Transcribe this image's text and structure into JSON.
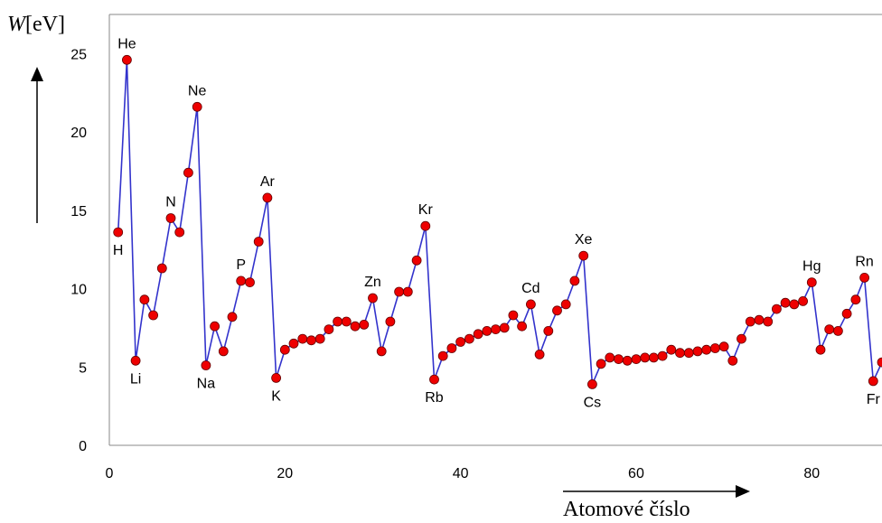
{
  "chart_data": {
    "type": "line",
    "ylabel_var": "W",
    "ylabel_unit": "[eV]",
    "xlabel": "Atomové číslo",
    "xlim": [
      0,
      88
    ],
    "ylim": [
      0,
      27.5
    ],
    "x_ticks": [
      0,
      20,
      40,
      60,
      80
    ],
    "y_ticks": [
      0,
      5,
      10,
      15,
      20,
      25
    ],
    "grid": false,
    "line_color": "#3333cc",
    "marker_color": "#ee0000",
    "series": [
      {
        "x": [
          1,
          2,
          3,
          4,
          5,
          6,
          7,
          8,
          9,
          10,
          11,
          12,
          13,
          14,
          15,
          16,
          17,
          18,
          19,
          20,
          21,
          22,
          23,
          24,
          25,
          26,
          27,
          28,
          29,
          30,
          31,
          32,
          33,
          34,
          35,
          36,
          37,
          38,
          39,
          40,
          41,
          42,
          43,
          44,
          45,
          46,
          47,
          48,
          49,
          50,
          51,
          52,
          53,
          54,
          55,
          56,
          57,
          58,
          59,
          60,
          61,
          62,
          63,
          64,
          65,
          66,
          67,
          68,
          69,
          70,
          71,
          72,
          73,
          74,
          75,
          76,
          77,
          78,
          79,
          80,
          81,
          82,
          83,
          84,
          85,
          86,
          87,
          88
        ],
        "values": [
          13.6,
          24.6,
          5.4,
          9.3,
          8.3,
          11.3,
          14.5,
          13.6,
          17.4,
          21.6,
          5.1,
          7.6,
          6.0,
          8.2,
          10.5,
          10.4,
          13.0,
          15.8,
          4.3,
          6.1,
          6.5,
          6.8,
          6.7,
          6.8,
          7.4,
          7.9,
          7.9,
          7.6,
          7.7,
          9.4,
          6.0,
          7.9,
          9.8,
          9.8,
          11.8,
          14.0,
          4.2,
          5.7,
          6.2,
          6.6,
          6.8,
          7.1,
          7.3,
          7.4,
          7.5,
          8.3,
          7.6,
          9.0,
          5.8,
          7.3,
          8.6,
          9.0,
          10.5,
          12.1,
          3.9,
          5.2,
          5.6,
          5.5,
          5.4,
          5.5,
          5.6,
          5.6,
          5.7,
          6.1,
          5.9,
          5.9,
          6.0,
          6.1,
          6.2,
          6.3,
          5.4,
          6.8,
          7.9,
          8.0,
          7.9,
          8.7,
          9.1,
          9.0,
          9.2,
          10.4,
          6.1,
          7.4,
          7.3,
          8.4,
          9.3,
          10.7,
          4.1,
          5.3
        ]
      }
    ],
    "annotations": [
      {
        "text": "H",
        "x": 1,
        "pos": "below"
      },
      {
        "text": "He",
        "x": 2,
        "pos": "above"
      },
      {
        "text": "Li",
        "x": 3,
        "pos": "below"
      },
      {
        "text": "N",
        "x": 7,
        "pos": "above"
      },
      {
        "text": "Ne",
        "x": 10,
        "pos": "above"
      },
      {
        "text": "Na",
        "x": 11,
        "pos": "below"
      },
      {
        "text": "P",
        "x": 15,
        "pos": "above"
      },
      {
        "text": "Ar",
        "x": 18,
        "pos": "above"
      },
      {
        "text": "K",
        "x": 19,
        "pos": "below"
      },
      {
        "text": "Zn",
        "x": 30,
        "pos": "above"
      },
      {
        "text": "Kr",
        "x": 36,
        "pos": "above"
      },
      {
        "text": "Rb",
        "x": 37,
        "pos": "below"
      },
      {
        "text": "Cd",
        "x": 48,
        "pos": "above"
      },
      {
        "text": "Xe",
        "x": 54,
        "pos": "above"
      },
      {
        "text": "Cs",
        "x": 55,
        "pos": "below"
      },
      {
        "text": "Hg",
        "x": 80,
        "pos": "above"
      },
      {
        "text": "Rn",
        "x": 86,
        "pos": "above"
      },
      {
        "text": "Fr",
        "x": 87,
        "pos": "below"
      }
    ]
  }
}
